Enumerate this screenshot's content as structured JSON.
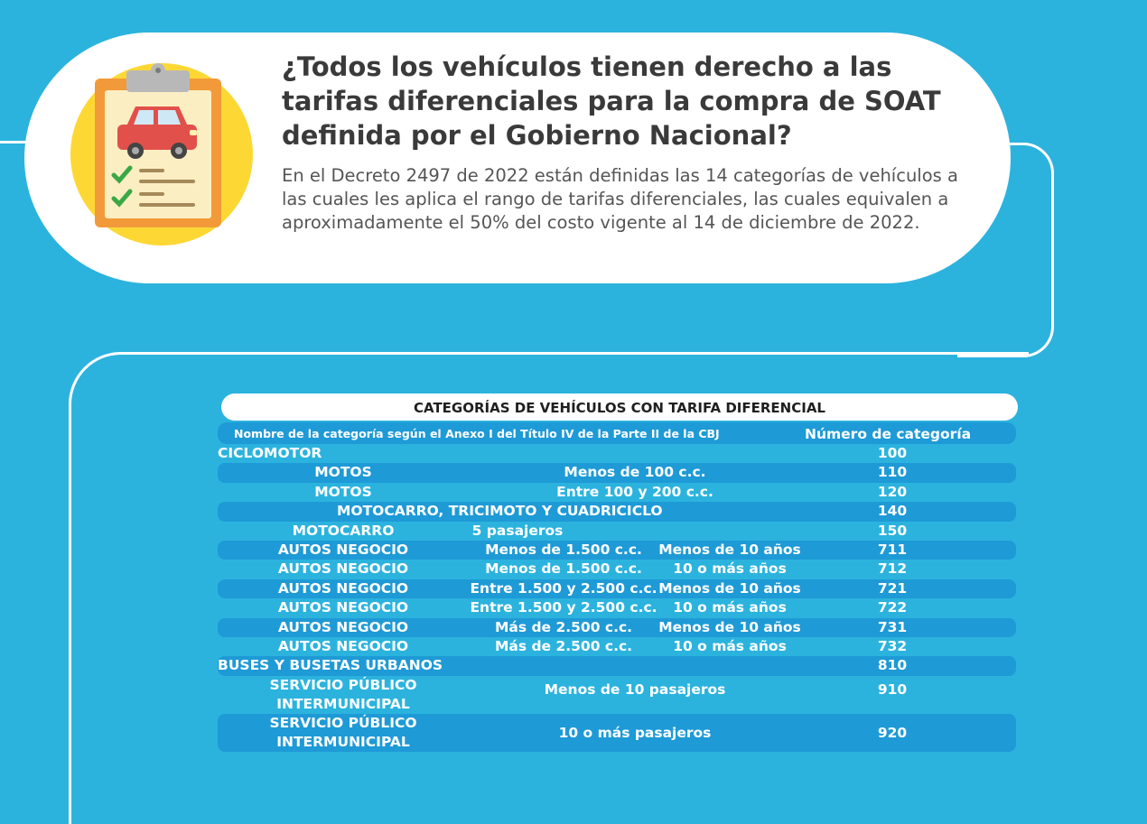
{
  "header": {
    "title": "¿Todos los vehículos tienen derecho a las tarifas diferenciales para la compra de SOAT definida por el Gobierno Nacional?",
    "intro": "En el Decreto 2497 de 2022 están definidas las 14 categorías de vehículos a las cuales les aplica el rango de tarifas diferenciales, las cuales equivalen a aproximadamente el 50% del costo vigente al 14 de diciembre de 2022."
  },
  "table": {
    "title": "CATEGORÍAS DE VEHÍCULOS CON TARIFA DIFERENCIAL",
    "header_name": "Nombre de la categoría según el Anexo I del Título IV de la Parte II de la CBJ",
    "header_number": "Número de categoría",
    "rows": [
      {
        "name": "CICLOMOTOR",
        "detail1": "",
        "detail2": "",
        "number": "100"
      },
      {
        "name": "MOTOS",
        "detail1": "Menos de 100 c.c.",
        "detail2": "",
        "number": "110"
      },
      {
        "name": "MOTOS",
        "detail1": "Entre 100 y 200 c.c.",
        "detail2": "",
        "number": "120"
      },
      {
        "name": "MOTOCARRO, TRICIMOTO Y CUADRICICLO",
        "detail1": "",
        "detail2": "",
        "number": "140"
      },
      {
        "name": "MOTOCARRO",
        "detail1": "5 pasajeros",
        "detail2": "",
        "number": "150"
      },
      {
        "name": "AUTOS NEGOCIO",
        "detail1": "Menos de 1.500 c.c.",
        "detail2": "Menos de 10 años",
        "number": "711"
      },
      {
        "name": "AUTOS NEGOCIO",
        "detail1": "Menos de 1.500 c.c.",
        "detail2": "10 o más años",
        "number": "712"
      },
      {
        "name": "AUTOS NEGOCIO",
        "detail1": "Entre 1.500 y 2.500 c.c.",
        "detail2": "Menos de 10 años",
        "number": "721"
      },
      {
        "name": "AUTOS NEGOCIO",
        "detail1": "Entre 1.500 y 2.500 c.c.",
        "detail2": "10 o más años",
        "number": "722"
      },
      {
        "name": "AUTOS NEGOCIO",
        "detail1": "Más de 2.500 c.c.",
        "detail2": "Menos de 10 años",
        "number": "731"
      },
      {
        "name": "AUTOS NEGOCIO",
        "detail1": "Más de 2.500 c.c.",
        "detail2": "10 o más años",
        "number": "732"
      },
      {
        "name": "BUSES Y BUSETAS URBANOS",
        "detail1": "",
        "detail2": "",
        "number": "810"
      },
      {
        "name_line1": "SERVICIO PÚBLICO",
        "name_line2": "INTERMUNICIPAL",
        "detail1": "Menos de 10 pasajeros",
        "number": "910"
      },
      {
        "name_line1": "SERVICIO PÚBLICO",
        "name_line2": "INTERMUNICIPAL",
        "detail1": "10 o más pasajeros",
        "number": "920"
      }
    ]
  },
  "icons": {
    "illustration": "clipboard-car-checklist-icon"
  },
  "colors": {
    "background": "#2bb3de",
    "row_stripe": "#1e9ad6",
    "icon_circle": "#fdd835",
    "clipboard": "#f29a3a",
    "car": "#e2504b",
    "check": "#3aa845"
  }
}
